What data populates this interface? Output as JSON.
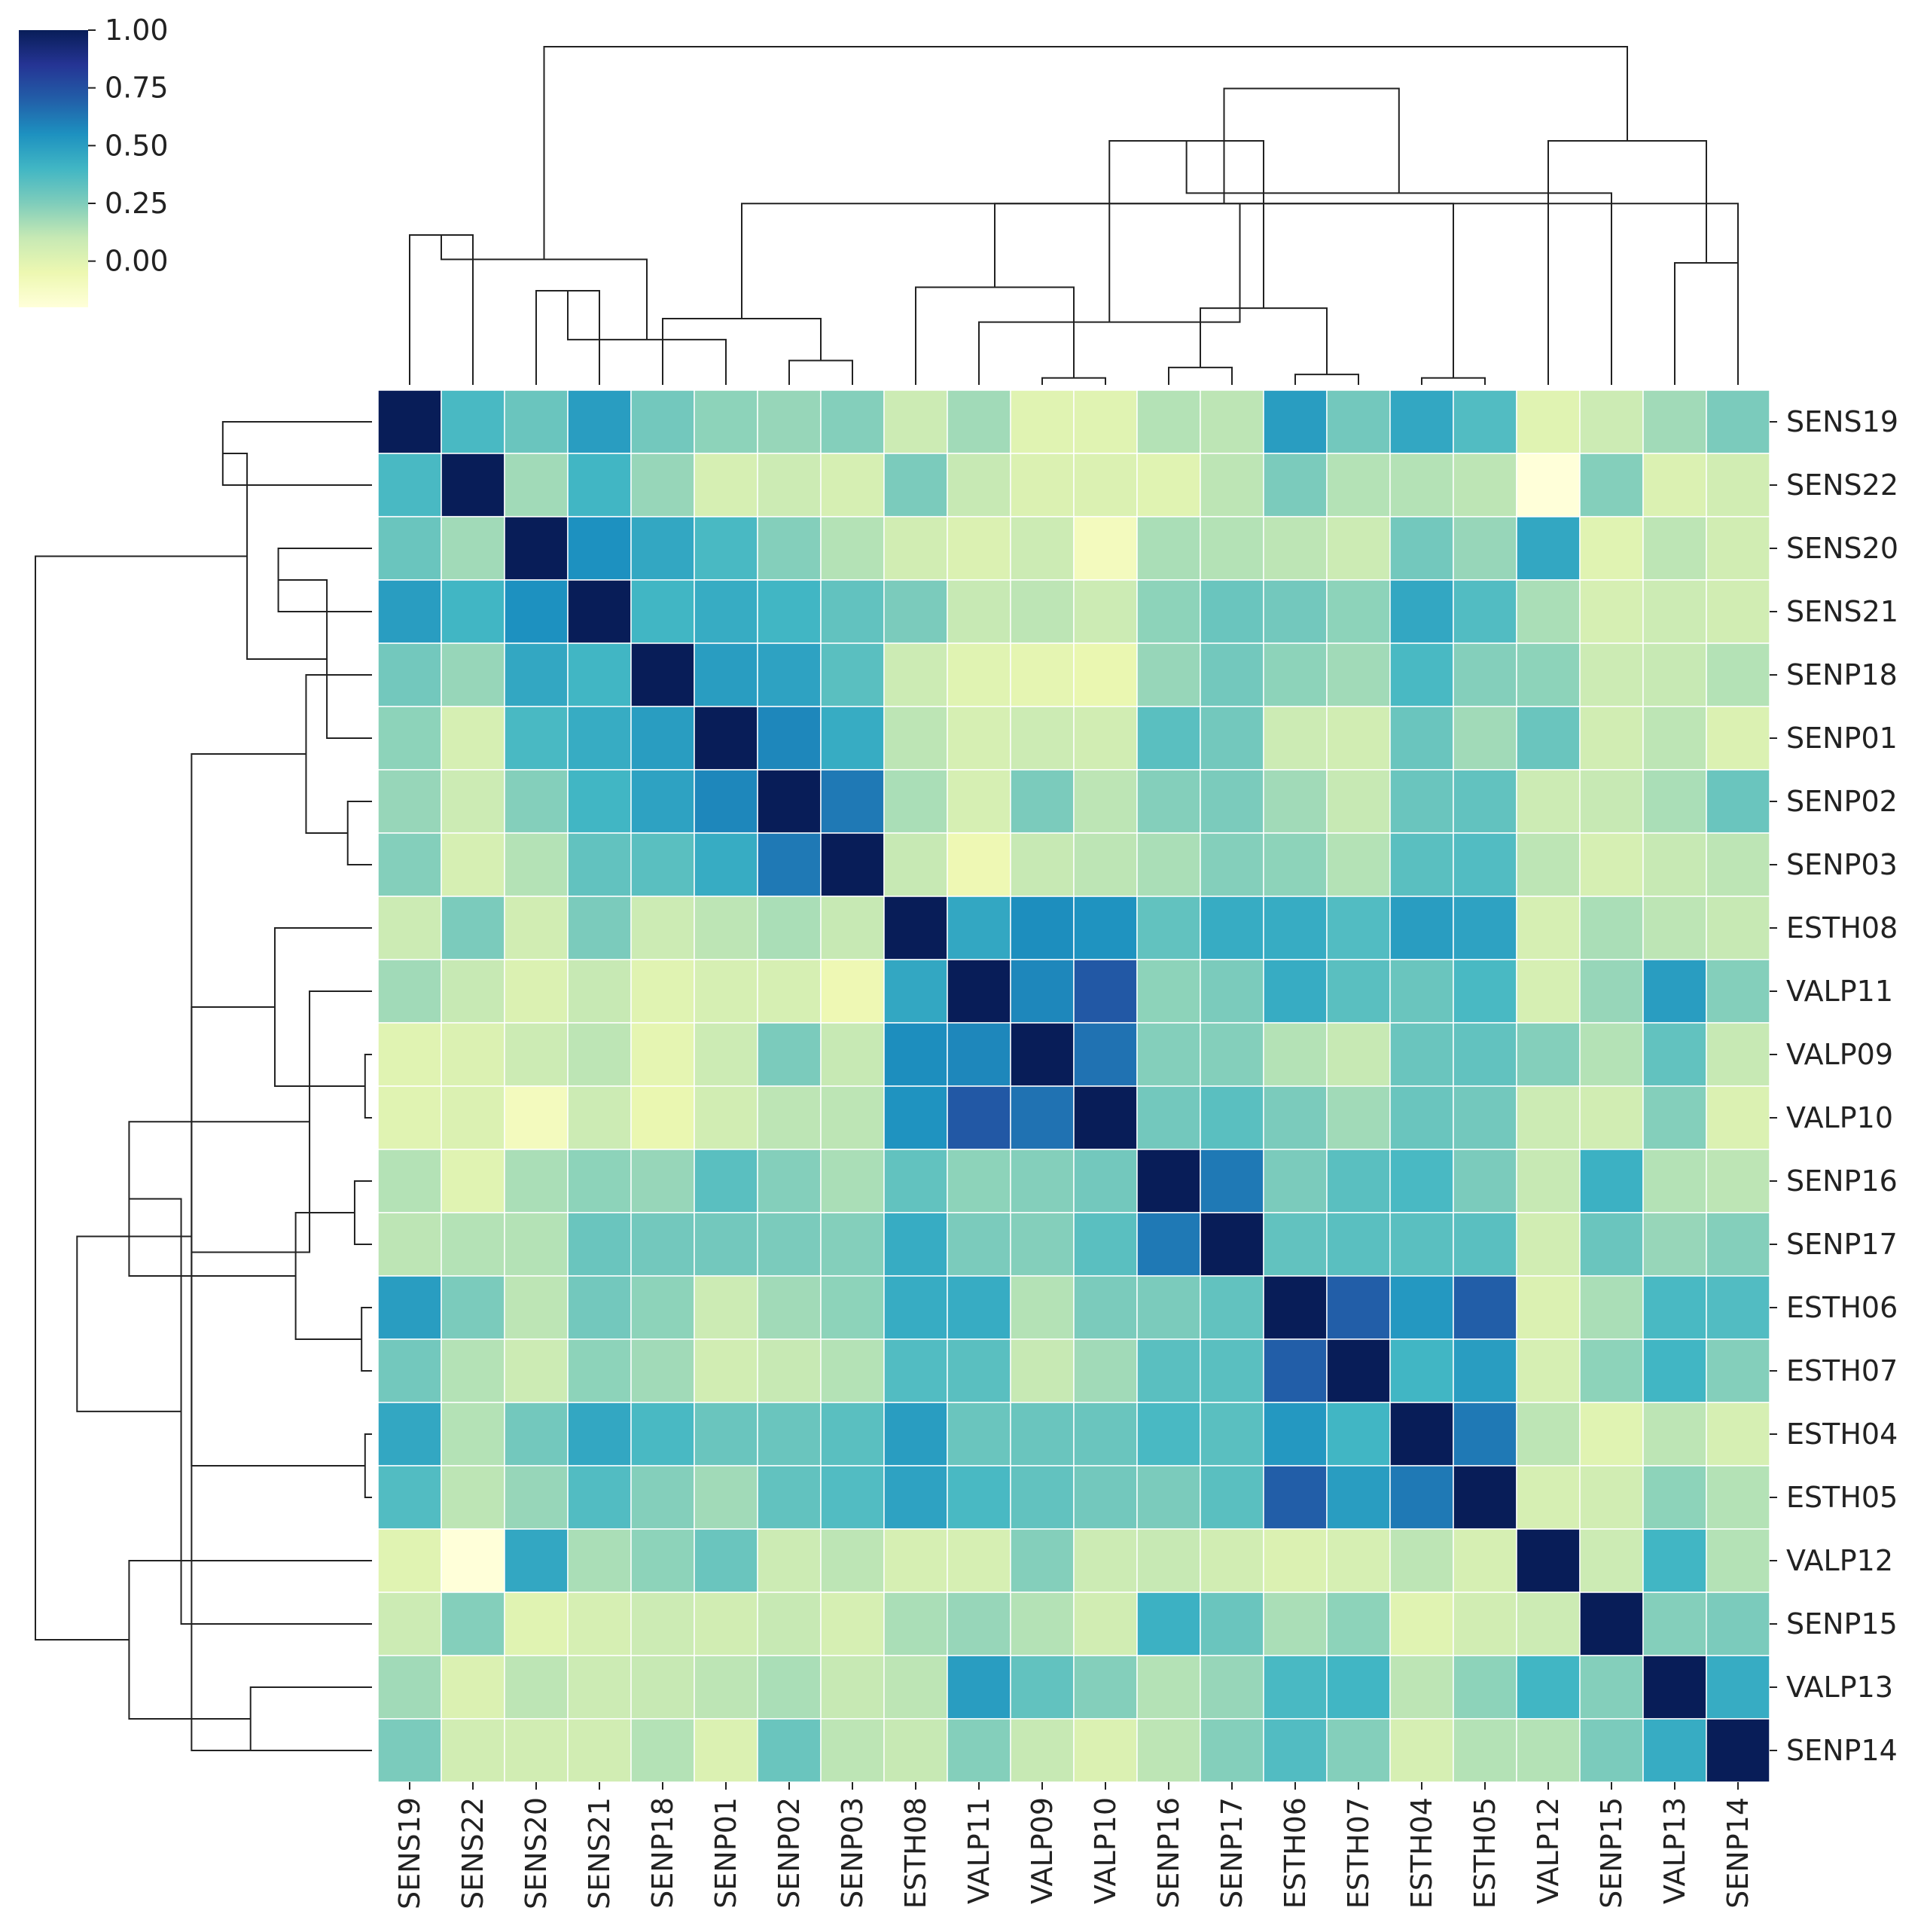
{
  "chart_data": {
    "type": "heatmap",
    "subtype": "clustermap",
    "title": "",
    "xlabel": "",
    "ylabel": "",
    "labels": [
      "SENS19",
      "SENS22",
      "SENS20",
      "SENS21",
      "SENP18",
      "SENP01",
      "SENP02",
      "SENP03",
      "ESTH08",
      "VALP11",
      "VALP09",
      "VALP10",
      "SENP16",
      "SENP17",
      "ESTH06",
      "ESTH07",
      "ESTH04",
      "ESTH05",
      "VALP12",
      "SENP15",
      "VALP13",
      "SENP14"
    ],
    "colormap": "YlGnBu",
    "colormap_stops": [
      "#ffffd9",
      "#edf8b1",
      "#c7e9b4",
      "#7fcdbb",
      "#41b6c4",
      "#1d91c0",
      "#225ea8",
      "#253494",
      "#081d58"
    ],
    "vmin": -0.2,
    "vmax": 1.0,
    "colorbar": {
      "ticks": [
        1.0,
        0.75,
        0.5,
        0.25,
        0.0
      ],
      "tick_labels": [
        "1.00",
        "0.75",
        "0.50",
        "0.25",
        "0.00"
      ],
      "position": "top-left"
    },
    "dendrogram_links": [
      [
        0,
        1,
        0.43
      ],
      [
        2,
        3,
        0.27
      ],
      [
        6,
        7,
        0.07
      ],
      [
        5,
        23,
        0.13
      ],
      [
        4,
        24,
        0.19
      ],
      [
        22,
        25,
        0.36
      ],
      [
        21,
        26,
        0.52
      ],
      [
        10,
        11,
        0.02
      ],
      [
        9,
        28,
        0.18
      ],
      [
        8,
        29,
        0.28
      ],
      [
        12,
        13,
        0.05
      ],
      [
        14,
        15,
        0.03
      ],
      [
        16,
        17,
        0.02
      ],
      [
        32,
        33,
        0.22
      ],
      [
        31,
        34,
        0.52
      ],
      [
        30,
        35,
        0.7
      ],
      [
        20,
        21,
        0.35
      ],
      [
        19,
        37,
        0.55
      ],
      [
        18,
        38,
        0.7
      ],
      [
        36,
        39,
        0.85
      ],
      [
        27,
        40,
        0.97
      ]
    ],
    "dendrogram_max_height": 0.97,
    "values": [
      [
        1.0,
        0.38,
        0.3,
        0.5,
        0.28,
        0.22,
        0.2,
        0.24,
        0.08,
        0.18,
        0.0,
        0.0,
        0.14,
        0.12,
        0.5,
        0.28,
        0.46,
        0.36,
        0.0,
        0.08,
        0.18,
        0.26
      ],
      [
        0.38,
        1.0,
        0.18,
        0.4,
        0.2,
        0.04,
        0.08,
        0.04,
        0.26,
        0.1,
        0.02,
        0.02,
        0.0,
        0.12,
        0.26,
        0.14,
        0.14,
        0.12,
        -0.2,
        0.24,
        0.02,
        0.06
      ],
      [
        0.3,
        0.18,
        1.0,
        0.55,
        0.46,
        0.38,
        0.24,
        0.14,
        0.06,
        0.02,
        0.08,
        -0.1,
        0.16,
        0.14,
        0.12,
        0.08,
        0.28,
        0.2,
        0.46,
        0.0,
        0.12,
        0.06
      ],
      [
        0.5,
        0.4,
        0.55,
        1.0,
        0.4,
        0.44,
        0.4,
        0.32,
        0.26,
        0.1,
        0.12,
        0.08,
        0.22,
        0.3,
        0.28,
        0.22,
        0.46,
        0.36,
        0.16,
        0.04,
        0.08,
        0.06
      ],
      [
        0.28,
        0.2,
        0.46,
        0.4,
        1.0,
        0.5,
        0.48,
        0.34,
        0.08,
        0.0,
        -0.02,
        -0.04,
        0.2,
        0.28,
        0.22,
        0.18,
        0.38,
        0.24,
        0.22,
        0.08,
        0.1,
        0.14
      ],
      [
        0.22,
        0.04,
        0.38,
        0.44,
        0.5,
        1.0,
        0.58,
        0.44,
        0.12,
        0.04,
        0.08,
        0.06,
        0.34,
        0.28,
        0.08,
        0.06,
        0.3,
        0.18,
        0.3,
        0.06,
        0.12,
        0.02
      ],
      [
        0.2,
        0.08,
        0.24,
        0.4,
        0.48,
        0.58,
        1.0,
        0.62,
        0.16,
        0.04,
        0.26,
        0.12,
        0.24,
        0.26,
        0.18,
        0.1,
        0.3,
        0.32,
        0.08,
        0.1,
        0.16,
        0.3
      ],
      [
        0.24,
        0.04,
        0.14,
        0.32,
        0.34,
        0.44,
        0.62,
        1.0,
        0.1,
        -0.06,
        0.1,
        0.12,
        0.16,
        0.24,
        0.22,
        0.14,
        0.34,
        0.36,
        0.12,
        0.04,
        0.1,
        0.12
      ],
      [
        0.08,
        0.26,
        0.06,
        0.26,
        0.08,
        0.12,
        0.16,
        0.1,
        1.0,
        0.46,
        0.56,
        0.54,
        0.32,
        0.44,
        0.44,
        0.36,
        0.5,
        0.48,
        0.04,
        0.16,
        0.12,
        0.1
      ],
      [
        0.18,
        0.1,
        0.02,
        0.1,
        0.0,
        0.04,
        0.04,
        -0.06,
        0.46,
        1.0,
        0.58,
        0.72,
        0.22,
        0.26,
        0.44,
        0.34,
        0.3,
        0.38,
        0.04,
        0.2,
        0.5,
        0.24
      ],
      [
        0.0,
        0.02,
        0.08,
        0.12,
        -0.02,
        0.08,
        0.26,
        0.1,
        0.56,
        0.58,
        1.0,
        0.64,
        0.24,
        0.24,
        0.14,
        0.1,
        0.3,
        0.32,
        0.24,
        0.14,
        0.32,
        0.1
      ],
      [
        0.0,
        0.02,
        -0.1,
        0.08,
        -0.04,
        0.06,
        0.12,
        0.12,
        0.54,
        0.72,
        0.64,
        1.0,
        0.28,
        0.34,
        0.26,
        0.18,
        0.3,
        0.28,
        0.08,
        0.06,
        0.24,
        0.02
      ],
      [
        0.14,
        0.0,
        0.16,
        0.22,
        0.2,
        0.34,
        0.24,
        0.16,
        0.32,
        0.22,
        0.24,
        0.28,
        1.0,
        0.62,
        0.26,
        0.34,
        0.38,
        0.26,
        0.1,
        0.42,
        0.14,
        0.12
      ],
      [
        0.12,
        0.14,
        0.14,
        0.3,
        0.28,
        0.28,
        0.26,
        0.24,
        0.44,
        0.26,
        0.24,
        0.34,
        0.62,
        1.0,
        0.32,
        0.34,
        0.34,
        0.34,
        0.06,
        0.3,
        0.2,
        0.24
      ],
      [
        0.5,
        0.26,
        0.12,
        0.28,
        0.22,
        0.08,
        0.18,
        0.22,
        0.44,
        0.44,
        0.14,
        0.26,
        0.26,
        0.32,
        1.0,
        0.7,
        0.52,
        0.7,
        0.02,
        0.16,
        0.38,
        0.36
      ],
      [
        0.28,
        0.14,
        0.08,
        0.22,
        0.18,
        0.06,
        0.1,
        0.14,
        0.36,
        0.34,
        0.1,
        0.18,
        0.34,
        0.34,
        0.7,
        1.0,
        0.4,
        0.5,
        0.04,
        0.22,
        0.4,
        0.24
      ],
      [
        0.46,
        0.14,
        0.28,
        0.46,
        0.38,
        0.3,
        0.3,
        0.34,
        0.5,
        0.3,
        0.3,
        0.3,
        0.38,
        0.34,
        0.52,
        0.4,
        1.0,
        0.62,
        0.12,
        0.0,
        0.12,
        0.04
      ],
      [
        0.36,
        0.12,
        0.2,
        0.36,
        0.24,
        0.18,
        0.32,
        0.36,
        0.48,
        0.38,
        0.32,
        0.28,
        0.26,
        0.34,
        0.7,
        0.5,
        0.62,
        1.0,
        0.04,
        0.06,
        0.22,
        0.14
      ],
      [
        0.0,
        -0.2,
        0.46,
        0.16,
        0.22,
        0.3,
        0.08,
        0.12,
        0.04,
        0.04,
        0.24,
        0.08,
        0.1,
        0.06,
        0.02,
        0.04,
        0.12,
        0.04,
        1.0,
        0.08,
        0.4,
        0.14
      ],
      [
        0.08,
        0.24,
        0.0,
        0.04,
        0.08,
        0.06,
        0.1,
        0.04,
        0.16,
        0.2,
        0.14,
        0.06,
        0.42,
        0.3,
        0.16,
        0.22,
        0.0,
        0.06,
        0.08,
        1.0,
        0.24,
        0.26
      ],
      [
        0.18,
        0.02,
        0.12,
        0.08,
        0.1,
        0.12,
        0.16,
        0.1,
        0.12,
        0.5,
        0.32,
        0.24,
        0.14,
        0.2,
        0.38,
        0.4,
        0.12,
        0.22,
        0.4,
        0.24,
        1.0,
        0.44
      ],
      [
        0.26,
        0.06,
        0.06,
        0.06,
        0.14,
        0.02,
        0.3,
        0.12,
        0.1,
        0.24,
        0.1,
        0.02,
        0.12,
        0.24,
        0.36,
        0.24,
        0.04,
        0.14,
        0.14,
        0.26,
        0.44,
        1.0
      ]
    ]
  }
}
